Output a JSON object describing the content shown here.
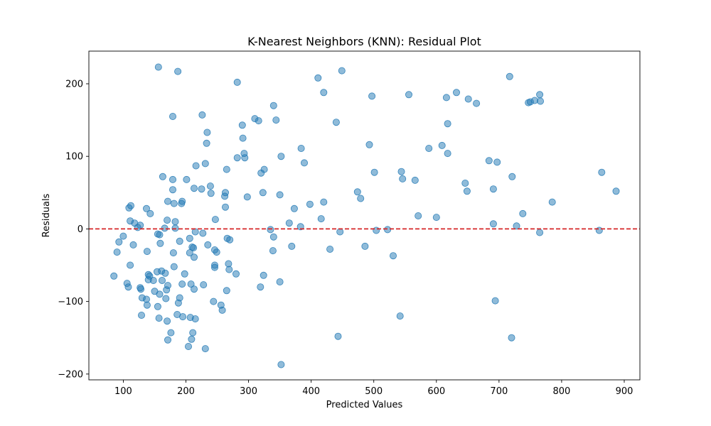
{
  "chart_data": {
    "type": "scatter",
    "title": "K-Nearest Neighbors (KNN): Residual Plot",
    "xlabel": "Predicted Values",
    "ylabel": "Residuals",
    "xlim": [
      45,
      925
    ],
    "ylim": [
      -208,
      245
    ],
    "xticks": [
      100,
      200,
      300,
      400,
      500,
      600,
      700,
      800,
      900
    ],
    "xtick_labels": [
      "100",
      "200",
      "300",
      "400",
      "500",
      "600",
      "700",
      "800",
      "900"
    ],
    "yticks": [
      -200,
      -100,
      0,
      100,
      200
    ],
    "ytick_labels": [
      "−200",
      "−100",
      "0",
      "100",
      "200"
    ],
    "grid": false,
    "reference_line": {
      "y": 0,
      "style": "dashed",
      "color": "#d62728"
    },
    "point_color": "#1f77b4",
    "point_alpha": 0.5,
    "points": [
      [
        156,
        223
      ],
      [
        187,
        217
      ],
      [
        282,
        202
      ],
      [
        449,
        218
      ],
      [
        411,
        208
      ],
      [
        420,
        188
      ],
      [
        497,
        183
      ],
      [
        556,
        185
      ],
      [
        616,
        181
      ],
      [
        632,
        188
      ],
      [
        651,
        179
      ],
      [
        664,
        173
      ],
      [
        717,
        210
      ],
      [
        747,
        174
      ],
      [
        750,
        175
      ],
      [
        757,
        177
      ],
      [
        765,
        185
      ],
      [
        766,
        176
      ],
      [
        179,
        155
      ],
      [
        226,
        157
      ],
      [
        310,
        152
      ],
      [
        316,
        149
      ],
      [
        344,
        150
      ],
      [
        340,
        170
      ],
      [
        290,
        143
      ],
      [
        440,
        147
      ],
      [
        618,
        145
      ],
      [
        234,
        133
      ],
      [
        291,
        125
      ],
      [
        233,
        118
      ],
      [
        293,
        104
      ],
      [
        294,
        98
      ],
      [
        282,
        98
      ],
      [
        352,
        100
      ],
      [
        384,
        111
      ],
      [
        493,
        116
      ],
      [
        588,
        111
      ],
      [
        609,
        115
      ],
      [
        618,
        104
      ],
      [
        684,
        94
      ],
      [
        697,
        92
      ],
      [
        216,
        87
      ],
      [
        231,
        90
      ],
      [
        265,
        82
      ],
      [
        325,
        82
      ],
      [
        320,
        77
      ],
      [
        163,
        72
      ],
      [
        201,
        68
      ],
      [
        179,
        68
      ],
      [
        389,
        91
      ],
      [
        501,
        78
      ],
      [
        544,
        79
      ],
      [
        546,
        69
      ],
      [
        566,
        67
      ],
      [
        646,
        63
      ],
      [
        721,
        72
      ],
      [
        864,
        78
      ],
      [
        213,
        56
      ],
      [
        225,
        55
      ],
      [
        239,
        59
      ],
      [
        263,
        50
      ],
      [
        262,
        45
      ],
      [
        240,
        49
      ],
      [
        298,
        44
      ],
      [
        323,
        50
      ],
      [
        350,
        47
      ],
      [
        179,
        54
      ],
      [
        112,
        32
      ],
      [
        109,
        29
      ],
      [
        137,
        28
      ],
      [
        143,
        21
      ],
      [
        193,
        35
      ],
      [
        194,
        38
      ],
      [
        171,
        38
      ],
      [
        181,
        35
      ],
      [
        247,
        13
      ],
      [
        263,
        30
      ],
      [
        383,
        3
      ],
      [
        373,
        28
      ],
      [
        365,
        8
      ],
      [
        416,
        14
      ],
      [
        420,
        37
      ],
      [
        474,
        51
      ],
      [
        479,
        42
      ],
      [
        398,
        34
      ],
      [
        571,
        18
      ],
      [
        600,
        16
      ],
      [
        649,
        52
      ],
      [
        691,
        55
      ],
      [
        738,
        21
      ],
      [
        785,
        37
      ],
      [
        887,
        52
      ],
      [
        111,
        11
      ],
      [
        118,
        8
      ],
      [
        123,
        2
      ],
      [
        127,
        5
      ],
      [
        170,
        12
      ],
      [
        166,
        1
      ],
      [
        183,
        10
      ],
      [
        183,
        1
      ],
      [
        215,
        -4
      ],
      [
        227,
        -6
      ],
      [
        206,
        -13
      ],
      [
        266,
        -13
      ],
      [
        270,
        -15
      ],
      [
        335,
        -1
      ],
      [
        340,
        -11
      ],
      [
        504,
        -2
      ],
      [
        522,
        -1
      ],
      [
        446,
        -4
      ],
      [
        691,
        7
      ],
      [
        728,
        4
      ],
      [
        765,
        -5
      ],
      [
        860,
        -2
      ],
      [
        100,
        -10
      ],
      [
        93,
        -18
      ],
      [
        90,
        -32
      ],
      [
        116,
        -22
      ],
      [
        138,
        -31
      ],
      [
        155,
        -7
      ],
      [
        158,
        -8
      ],
      [
        159,
        -20
      ],
      [
        190,
        -17
      ],
      [
        180,
        -33
      ],
      [
        210,
        -25
      ],
      [
        212,
        -26
      ],
      [
        206,
        -33
      ],
      [
        213,
        -39
      ],
      [
        235,
        -22
      ],
      [
        246,
        -29
      ],
      [
        249,
        -32
      ],
      [
        339,
        -30
      ],
      [
        369,
        -24
      ],
      [
        430,
        -28
      ],
      [
        486,
        -24
      ],
      [
        531,
        -37
      ],
      [
        85,
        -65
      ],
      [
        111,
        -50
      ],
      [
        106,
        -75
      ],
      [
        108,
        -80
      ],
      [
        127,
        -81
      ],
      [
        128,
        -83
      ],
      [
        130,
        -95
      ],
      [
        140,
        -63
      ],
      [
        142,
        -65
      ],
      [
        140,
        -70
      ],
      [
        148,
        -71
      ],
      [
        154,
        -59
      ],
      [
        161,
        -58
      ],
      [
        162,
        -71
      ],
      [
        167,
        -61
      ],
      [
        171,
        -78
      ],
      [
        169,
        -84
      ],
      [
        181,
        -52
      ],
      [
        198,
        -62
      ],
      [
        194,
        -76
      ],
      [
        208,
        -76
      ],
      [
        213,
        -83
      ],
      [
        228,
        -77
      ],
      [
        246,
        -50
      ],
      [
        246,
        -53
      ],
      [
        268,
        -48
      ],
      [
        269,
        -56
      ],
      [
        280,
        -62
      ],
      [
        324,
        -64
      ],
      [
        350,
        -73
      ],
      [
        319,
        -80
      ],
      [
        265,
        -85
      ],
      [
        150,
        -86
      ],
      [
        158,
        -90
      ],
      [
        168,
        -96
      ],
      [
        137,
        -97
      ],
      [
        138,
        -105
      ],
      [
        155,
        -107
      ],
      [
        190,
        -95
      ],
      [
        188,
        -102
      ],
      [
        129,
        -119
      ],
      [
        157,
        -123
      ],
      [
        170,
        -127
      ],
      [
        186,
        -118
      ],
      [
        195,
        -121
      ],
      [
        207,
        -122
      ],
      [
        215,
        -124
      ],
      [
        244,
        -100
      ],
      [
        256,
        -105
      ],
      [
        258,
        -112
      ],
      [
        176,
        -143
      ],
      [
        211,
        -143
      ],
      [
        171,
        -153
      ],
      [
        209,
        -152
      ],
      [
        204,
        -162
      ],
      [
        231,
        -165
      ],
      [
        443,
        -148
      ],
      [
        542,
        -120
      ],
      [
        694,
        -99
      ],
      [
        720,
        -150
      ],
      [
        352,
        -187
      ]
    ]
  }
}
